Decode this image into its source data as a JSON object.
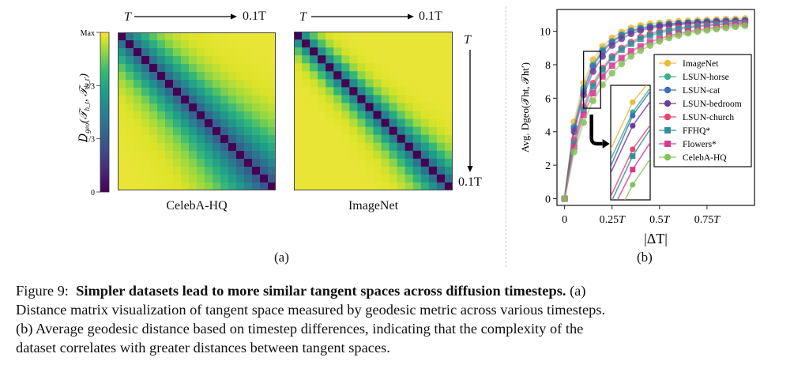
{
  "panel_a": {
    "label": "(a)",
    "colorbar": {
      "ticks": [
        "Max",
        "2/3",
        "1/3",
        "0"
      ],
      "ylabel": "D_geo(T_h_t, T_h_t')",
      "colormap": "viridis"
    },
    "heatmaps": [
      {
        "title": "CelebA-HQ",
        "top_left": "T",
        "top_right": "0.1T",
        "falloff": 0.22
      },
      {
        "title": "ImageNet",
        "top_left": "T",
        "top_right": "0.1T",
        "right_top": "T",
        "right_bottom": "0.1T",
        "falloff": 0.42
      }
    ]
  },
  "panel_b": {
    "label": "(b)"
  },
  "chart_data": [
    {
      "type": "heatmap",
      "title": "CelebA-HQ",
      "size": 20,
      "description": "20x20 symmetric distance matrix, zero on diagonal, increasing with |i-j| slowly",
      "axis_labels": {
        "x_start": "T",
        "x_end": "0.1T"
      },
      "colorbar_ticks": [
        "0",
        "1/3",
        "2/3",
        "Max"
      ]
    },
    {
      "type": "heatmap",
      "title": "ImageNet",
      "size": 20,
      "description": "20x20 symmetric distance matrix, zero on diagonal, increasing with |i-j| quickly",
      "axis_labels": {
        "x_start": "T",
        "x_end": "0.1T",
        "y_start": "T",
        "y_end": "0.1T"
      },
      "colorbar_ticks": [
        "0",
        "1/3",
        "2/3",
        "Max"
      ]
    },
    {
      "type": "line",
      "title": "",
      "xlabel": "|ΔT|",
      "ylabel": "Avg. D_geo(T_h_t, T_h_t')",
      "xlim": [
        -0.04,
        1.0
      ],
      "ylim": [
        -0.4,
        11.3
      ],
      "xticks": [
        {
          "v": 0,
          "label": "0"
        },
        {
          "v": 0.25,
          "label": "0.25T"
        },
        {
          "v": 0.5,
          "label": "0.5T"
        },
        {
          "v": 0.75,
          "label": "0.75T"
        }
      ],
      "yticks": [
        0,
        2,
        4,
        6,
        8,
        10
      ],
      "legend_position": "center-right",
      "x": [
        0,
        0.05,
        0.1,
        0.15,
        0.2,
        0.25,
        0.3,
        0.35,
        0.4,
        0.45,
        0.5,
        0.55,
        0.6,
        0.65,
        0.7,
        0.75,
        0.8,
        0.85,
        0.9,
        0.95
      ],
      "series": [
        {
          "name": "ImageNet",
          "color": "#f0b73a",
          "marker": "circle",
          "values": [
            0,
            4.6,
            6.9,
            8.3,
            9.1,
            9.6,
            9.95,
            10.2,
            10.35,
            10.45,
            10.5,
            10.55,
            10.6,
            10.62,
            10.65,
            10.68,
            10.7,
            10.72,
            10.74,
            10.76
          ]
        },
        {
          "name": "LSUN-horse",
          "color": "#3fae88",
          "marker": "circle",
          "values": [
            0,
            4.3,
            6.6,
            8.0,
            8.9,
            9.4,
            9.8,
            10.05,
            10.2,
            10.3,
            10.38,
            10.44,
            10.48,
            10.52,
            10.55,
            10.58,
            10.6,
            10.62,
            10.64,
            10.66
          ]
        },
        {
          "name": "LSUN-cat",
          "color": "#3b6fb6",
          "marker": "circle",
          "values": [
            0,
            4.2,
            6.4,
            7.9,
            8.8,
            9.35,
            9.75,
            10.0,
            10.15,
            10.27,
            10.35,
            10.42,
            10.47,
            10.51,
            10.54,
            10.57,
            10.6,
            10.62,
            10.63,
            10.65
          ]
        },
        {
          "name": "LSUN-bedroom",
          "color": "#6a3d9a",
          "marker": "circle",
          "values": [
            0,
            4.0,
            6.2,
            7.6,
            8.5,
            9.15,
            9.55,
            9.85,
            10.05,
            10.18,
            10.28,
            10.35,
            10.4,
            10.44,
            10.48,
            10.51,
            10.54,
            10.56,
            10.58,
            10.6
          ]
        },
        {
          "name": "LSUN-church",
          "color": "#e8456e",
          "marker": "circle",
          "values": [
            0,
            3.5,
            5.5,
            6.9,
            7.8,
            8.5,
            9.0,
            9.35,
            9.65,
            9.85,
            10.0,
            10.1,
            10.2,
            10.27,
            10.33,
            10.38,
            10.42,
            10.46,
            10.49,
            10.52
          ]
        },
        {
          "name": "FFHQ*",
          "color": "#2f8f9d",
          "marker": "square",
          "values": [
            0,
            3.3,
            5.3,
            6.7,
            7.7,
            8.4,
            8.9,
            9.25,
            9.55,
            9.75,
            9.9,
            10.02,
            10.12,
            10.2,
            10.27,
            10.32,
            10.37,
            10.41,
            10.45,
            10.48
          ]
        },
        {
          "name": "Flowers*",
          "color": "#d6398f",
          "marker": "square",
          "values": [
            0,
            3.1,
            5.0,
            6.3,
            7.3,
            7.95,
            8.4,
            8.8,
            9.1,
            9.35,
            9.55,
            9.72,
            9.86,
            9.98,
            10.08,
            10.16,
            10.24,
            10.3,
            10.36,
            10.42
          ]
        },
        {
          "name": "CelebA-HQ",
          "color": "#86c25a",
          "marker": "circle",
          "values": [
            0,
            2.8,
            4.55,
            5.85,
            6.8,
            7.5,
            8.05,
            8.5,
            8.85,
            9.15,
            9.4,
            9.6,
            9.75,
            9.88,
            9.98,
            10.06,
            10.13,
            10.2,
            10.27,
            10.33
          ]
        }
      ],
      "zoom_inset": {
        "x_range": [
          0.1,
          0.19
        ],
        "y_range": [
          5.4,
          8.8
        ]
      }
    }
  ],
  "caption": {
    "figure_label": "Figure 9:",
    "bold_title": "Simpler datasets lead to more similar tangent spaces across diffusion timesteps.",
    "line1_tail": "(a)",
    "line2": "Distance matrix visualization of tangent space measured by geodesic metric across various timesteps.",
    "line3": "(b) Average geodesic distance based on timestep differences, indicating that the complexity of the",
    "line4": "dataset correlates with greater distances between tangent spaces."
  }
}
